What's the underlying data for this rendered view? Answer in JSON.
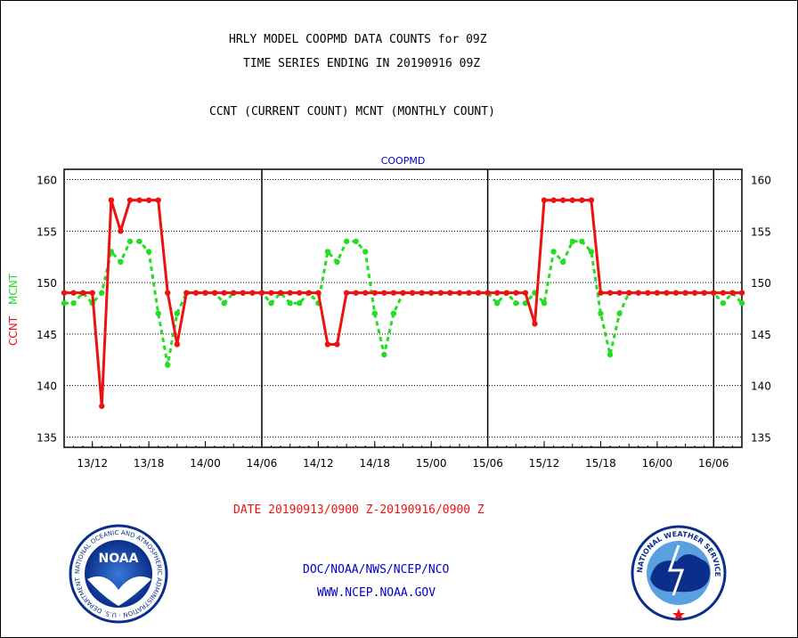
{
  "titles": {
    "line1": "HRLY MODEL COOPMD DATA COUNTS for 09Z",
    "line2": "TIME SERIES ENDING IN 20190916 09Z",
    "line3": "CCNT (CURRENT COUNT) MCNT (MONTHLY COUNT)"
  },
  "footer": {
    "date_range": "DATE 20190913/0900 Z-20190916/0900 Z",
    "org": "DOC/NOAA/NWS/NCEP/NCO",
    "url": "WWW.NCEP.NOAA.GOV"
  },
  "logos": {
    "noaa_text": "NOAA",
    "noaa_ring": "NATIONAL OCEANIC AND ATMOSPHERIC ADMINISTRATION · U.S. DEPARTMENT OF COMMERCE ·",
    "nws_ring": "NATIONAL WEATHER SERVICE"
  },
  "colors": {
    "ccnt": "#ee1111",
    "mcnt": "#22dd22",
    "label_blue": "#0000cc",
    "date_red": "#ee1111"
  },
  "chart_data": {
    "type": "line",
    "panel_label": "COOPMD",
    "ylabel_ccnt": "CCNT",
    "ylabel_mcnt": "MCNT",
    "ylim": [
      134,
      161
    ],
    "yticks": [
      135,
      140,
      145,
      150,
      155,
      160
    ],
    "xlim": [
      0,
      72
    ],
    "grid": true,
    "xtick_labels": [
      {
        "x": 3,
        "label": "13/12"
      },
      {
        "x": 9,
        "label": "13/18"
      },
      {
        "x": 15,
        "label": "14/00"
      },
      {
        "x": 21,
        "label": "14/06"
      },
      {
        "x": 27,
        "label": "14/12"
      },
      {
        "x": 33,
        "label": "14/18"
      },
      {
        "x": 39,
        "label": "15/00"
      },
      {
        "x": 45,
        "label": "15/06"
      },
      {
        "x": 51,
        "label": "15/12"
      },
      {
        "x": 57,
        "label": "15/18"
      },
      {
        "x": 63,
        "label": "16/00"
      },
      {
        "x": 69,
        "label": "16/06"
      }
    ],
    "day_boundaries": [
      21,
      45,
      69
    ],
    "series": [
      {
        "name": "CCNT",
        "values": [
          149,
          149,
          149,
          149,
          138,
          158,
          155,
          158,
          158,
          158,
          158,
          149,
          144,
          149,
          149,
          149,
          149,
          149,
          149,
          149,
          149,
          149,
          149,
          149,
          149,
          149,
          149,
          149,
          144,
          144,
          149,
          149,
          149,
          149,
          149,
          149,
          149,
          149,
          149,
          149,
          149,
          149,
          149,
          149,
          149,
          149,
          149,
          149,
          149,
          149,
          146,
          158,
          158,
          158,
          158,
          158,
          158,
          149,
          149,
          149,
          149,
          149,
          149,
          149,
          149,
          149,
          149,
          149,
          149,
          149,
          149,
          149,
          149
        ]
      },
      {
        "name": "MCNT",
        "values": [
          148,
          148,
          149,
          148,
          149,
          153,
          152,
          154,
          154,
          153,
          147,
          142,
          147,
          149,
          149,
          149,
          149,
          148,
          149,
          149,
          149,
          149,
          148,
          149,
          148,
          148,
          149,
          148,
          153,
          152,
          154,
          154,
          153,
          147,
          143,
          147,
          149,
          149,
          149,
          149,
          149,
          149,
          149,
          149,
          149,
          149,
          148,
          149,
          148,
          148,
          149,
          148,
          153,
          152,
          154,
          154,
          153,
          147,
          143,
          147,
          149,
          149,
          149,
          149,
          149,
          149,
          149,
          149,
          149,
          149,
          148,
          149,
          148
        ]
      }
    ]
  }
}
